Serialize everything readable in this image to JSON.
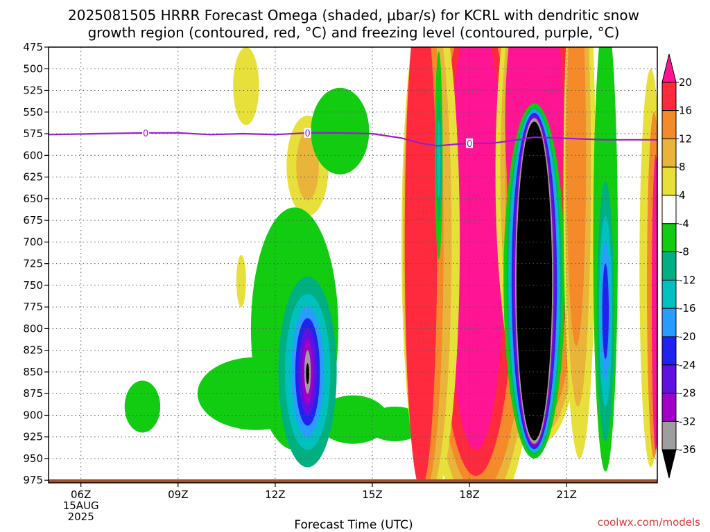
{
  "chart_data": {
    "type": "heatmap",
    "title_line1": "2025081505 HRRR Forecast Omega (shaded, μbar/s) for KCRL with dendritic snow",
    "title_line2": "growth region (contoured, red, °C) and freezing level (contoured, purple, °C)",
    "xlabel": "Forecast Time (UTC)",
    "credit": "coolwx.com/models",
    "x_ticks": [
      {
        "label": "06Z",
        "hour": 6,
        "sub1": "15AUG",
        "sub2": "2025"
      },
      {
        "label": "09Z",
        "hour": 9
      },
      {
        "label": "12Z",
        "hour": 12
      },
      {
        "label": "15Z",
        "hour": 15
      },
      {
        "label": "18Z",
        "hour": 18
      },
      {
        "label": "21Z",
        "hour": 21
      }
    ],
    "xlim": [
      5,
      23.8
    ],
    "y_ticks": [
      475,
      500,
      525,
      550,
      575,
      600,
      625,
      650,
      675,
      700,
      725,
      750,
      775,
      800,
      825,
      850,
      875,
      900,
      925,
      950,
      975
    ],
    "ylim": [
      475,
      978
    ],
    "grid": true,
    "colorbar": {
      "labels": [
        "20",
        "16",
        "12",
        "8",
        "4",
        "-4",
        "-8",
        "-12",
        "-16",
        "-20",
        "-24",
        "-28",
        "-32",
        "-36"
      ],
      "colors": [
        "#ff1493",
        "#ff2a3d",
        "#f58a2a",
        "#e8b53a",
        "#e8e03a",
        "#ffffff",
        "#11cc11",
        "#00b080",
        "#00c0c0",
        "#2a9bff",
        "#2222ee",
        "#6010e0",
        "#a000c8",
        "#9e9e9e",
        "#000000"
      ]
    },
    "freezing_level": {
      "color": "#9a1bd0",
      "label": "0",
      "points": [
        [
          5.0,
          576
        ],
        [
          6.5,
          575
        ],
        [
          8.0,
          574
        ],
        [
          9.0,
          574
        ],
        [
          10.0,
          576
        ],
        [
          11.0,
          575
        ],
        [
          12.0,
          576
        ],
        [
          13.0,
          574
        ],
        [
          14.0,
          574
        ],
        [
          15.0,
          575
        ],
        [
          15.9,
          580
        ],
        [
          16.5,
          586
        ],
        [
          17.0,
          589
        ],
        [
          17.6,
          587
        ],
        [
          18.0,
          586
        ],
        [
          18.7,
          586
        ],
        [
          19.3,
          583
        ],
        [
          20.0,
          579
        ],
        [
          20.8,
          580
        ],
        [
          21.5,
          581
        ],
        [
          22.2,
          582
        ],
        [
          23.0,
          582
        ],
        [
          23.8,
          582
        ]
      ],
      "label_hours": [
        8.0,
        13.0,
        18.0
      ]
    },
    "omega_regions": [
      {
        "level": "pos4",
        "cx": 11.1,
        "cy": 520,
        "rx": 0.4,
        "ry": 45
      },
      {
        "level": "pos4",
        "cx": 13.0,
        "cy": 612,
        "rx": 0.65,
        "ry": 58
      },
      {
        "level": "pos8",
        "cx": 13.0,
        "cy": 612,
        "rx": 0.35,
        "ry": 40
      },
      {
        "level": "pos4",
        "cx": 10.95,
        "cy": 745,
        "rx": 0.15,
        "ry": 30
      },
      {
        "level": "neg4",
        "cx": 14.0,
        "cy": 572,
        "rx": 0.9,
        "ry": 50
      },
      {
        "level": "neg4",
        "cx": 7.9,
        "cy": 890,
        "rx": 0.55,
        "ry": 30
      },
      {
        "level": "neg4",
        "cx": 11.4,
        "cy": 875,
        "rx": 1.8,
        "ry": 42
      },
      {
        "level": "neg4",
        "cx": 12.6,
        "cy": 800,
        "rx": 1.35,
        "ry": 140
      },
      {
        "level": "neg4",
        "cx": 14.4,
        "cy": 905,
        "rx": 1.1,
        "ry": 28
      },
      {
        "level": "neg4",
        "cx": 15.7,
        "cy": 910,
        "rx": 0.9,
        "ry": 20
      },
      {
        "level": "neg8",
        "cx": 13.0,
        "cy": 850,
        "rx": 0.9,
        "ry": 110
      },
      {
        "level": "neg12",
        "cx": 13.0,
        "cy": 850,
        "rx": 0.7,
        "ry": 90
      },
      {
        "level": "neg16",
        "cx": 13.0,
        "cy": 850,
        "rx": 0.5,
        "ry": 75
      },
      {
        "level": "neg20",
        "cx": 13.0,
        "cy": 850,
        "rx": 0.38,
        "ry": 62
      },
      {
        "level": "neg24",
        "cx": 13.0,
        "cy": 850,
        "rx": 0.28,
        "ry": 50
      },
      {
        "level": "neg28",
        "cx": 13.0,
        "cy": 850,
        "rx": 0.18,
        "ry": 38
      },
      {
        "level": "neg32",
        "cx": 13.0,
        "cy": 850,
        "rx": 0.1,
        "ry": 25
      },
      {
        "level": "neg36",
        "cx": 13.0,
        "cy": 852,
        "rx": 0.05,
        "ry": 12
      },
      {
        "level": "pos4",
        "cx": 18.3,
        "cy": 700,
        "rx": 1.9,
        "ry": 330
      },
      {
        "level": "pos8",
        "cx": 18.3,
        "cy": 700,
        "rx": 1.7,
        "ry": 310
      },
      {
        "level": "pos12",
        "cx": 18.3,
        "cy": 700,
        "rx": 1.5,
        "ry": 290
      },
      {
        "level": "pos16",
        "cx": 18.2,
        "cy": 700,
        "rx": 1.2,
        "ry": 270
      },
      {
        "level": "pos20",
        "cx": 18.2,
        "cy": 690,
        "rx": 0.9,
        "ry": 250
      },
      {
        "level": "pos4",
        "cx": 16.8,
        "cy": 700,
        "rx": 0.9,
        "ry": 300
      },
      {
        "level": "pos8",
        "cx": 16.7,
        "cy": 700,
        "rx": 0.75,
        "ry": 295
      },
      {
        "level": "pos12",
        "cx": 16.6,
        "cy": 700,
        "rx": 0.6,
        "ry": 290
      },
      {
        "level": "pos16",
        "cx": 16.5,
        "cy": 700,
        "rx": 0.5,
        "ry": 285
      },
      {
        "level": "pos4",
        "cx": 20.3,
        "cy": 620,
        "rx": 1.5,
        "ry": 310
      },
      {
        "level": "pos8",
        "cx": 20.3,
        "cy": 620,
        "rx": 1.35,
        "ry": 300
      },
      {
        "level": "pos12",
        "cx": 20.3,
        "cy": 615,
        "rx": 1.2,
        "ry": 290
      },
      {
        "level": "pos16",
        "cx": 20.2,
        "cy": 600,
        "rx": 1.05,
        "ry": 270
      },
      {
        "level": "pos20",
        "cx": 20.0,
        "cy": 560,
        "rx": 0.9,
        "ry": 180
      },
      {
        "level": "neg4",
        "cx": 17.05,
        "cy": 600,
        "rx": 0.12,
        "ry": 120
      },
      {
        "level": "neg8",
        "cx": 17.05,
        "cy": 605,
        "rx": 0.08,
        "ry": 70
      },
      {
        "level": "neg12",
        "cx": 17.05,
        "cy": 605,
        "rx": 0.05,
        "ry": 45
      },
      {
        "level": "neg4",
        "cx": 20.0,
        "cy": 745,
        "rx": 0.95,
        "ry": 205
      },
      {
        "level": "neg8",
        "cx": 20.0,
        "cy": 745,
        "rx": 0.85,
        "ry": 200
      },
      {
        "level": "neg12",
        "cx": 20.0,
        "cy": 745,
        "rx": 0.8,
        "ry": 198
      },
      {
        "level": "neg16",
        "cx": 20.0,
        "cy": 745,
        "rx": 0.75,
        "ry": 196
      },
      {
        "level": "neg20",
        "cx": 20.0,
        "cy": 745,
        "rx": 0.7,
        "ry": 194
      },
      {
        "level": "neg24",
        "cx": 20.0,
        "cy": 745,
        "rx": 0.66,
        "ry": 192
      },
      {
        "level": "neg28",
        "cx": 20.0,
        "cy": 745,
        "rx": 0.62,
        "ry": 190
      },
      {
        "level": "neg32",
        "cx": 20.0,
        "cy": 745,
        "rx": 0.59,
        "ry": 188
      },
      {
        "level": "neg36",
        "cx": 20.0,
        "cy": 745,
        "rx": 0.55,
        "ry": 184
      },
      {
        "level": "pos4",
        "cx": 21.4,
        "cy": 640,
        "rx": 0.5,
        "ry": 310
      },
      {
        "level": "pos8",
        "cx": 21.35,
        "cy": 620,
        "rx": 0.4,
        "ry": 270
      },
      {
        "level": "pos12",
        "cx": 21.3,
        "cy": 600,
        "rx": 0.3,
        "ry": 220
      },
      {
        "level": "pos4",
        "cx": 23.6,
        "cy": 730,
        "rx": 0.35,
        "ry": 230
      },
      {
        "level": "pos12",
        "cx": 23.7,
        "cy": 750,
        "rx": 0.22,
        "ry": 200
      },
      {
        "level": "pos20",
        "cx": 23.75,
        "cy": 770,
        "rx": 0.12,
        "ry": 170
      },
      {
        "level": "neg4",
        "cx": 22.2,
        "cy": 700,
        "rx": 0.38,
        "ry": 265
      },
      {
        "level": "neg8",
        "cx": 22.2,
        "cy": 780,
        "rx": 0.26,
        "ry": 150
      },
      {
        "level": "neg12",
        "cx": 22.2,
        "cy": 780,
        "rx": 0.2,
        "ry": 110
      },
      {
        "level": "neg16",
        "cx": 22.2,
        "cy": 780,
        "rx": 0.15,
        "ry": 80
      },
      {
        "level": "neg20",
        "cx": 22.2,
        "cy": 780,
        "rx": 0.1,
        "ry": 55
      }
    ]
  }
}
